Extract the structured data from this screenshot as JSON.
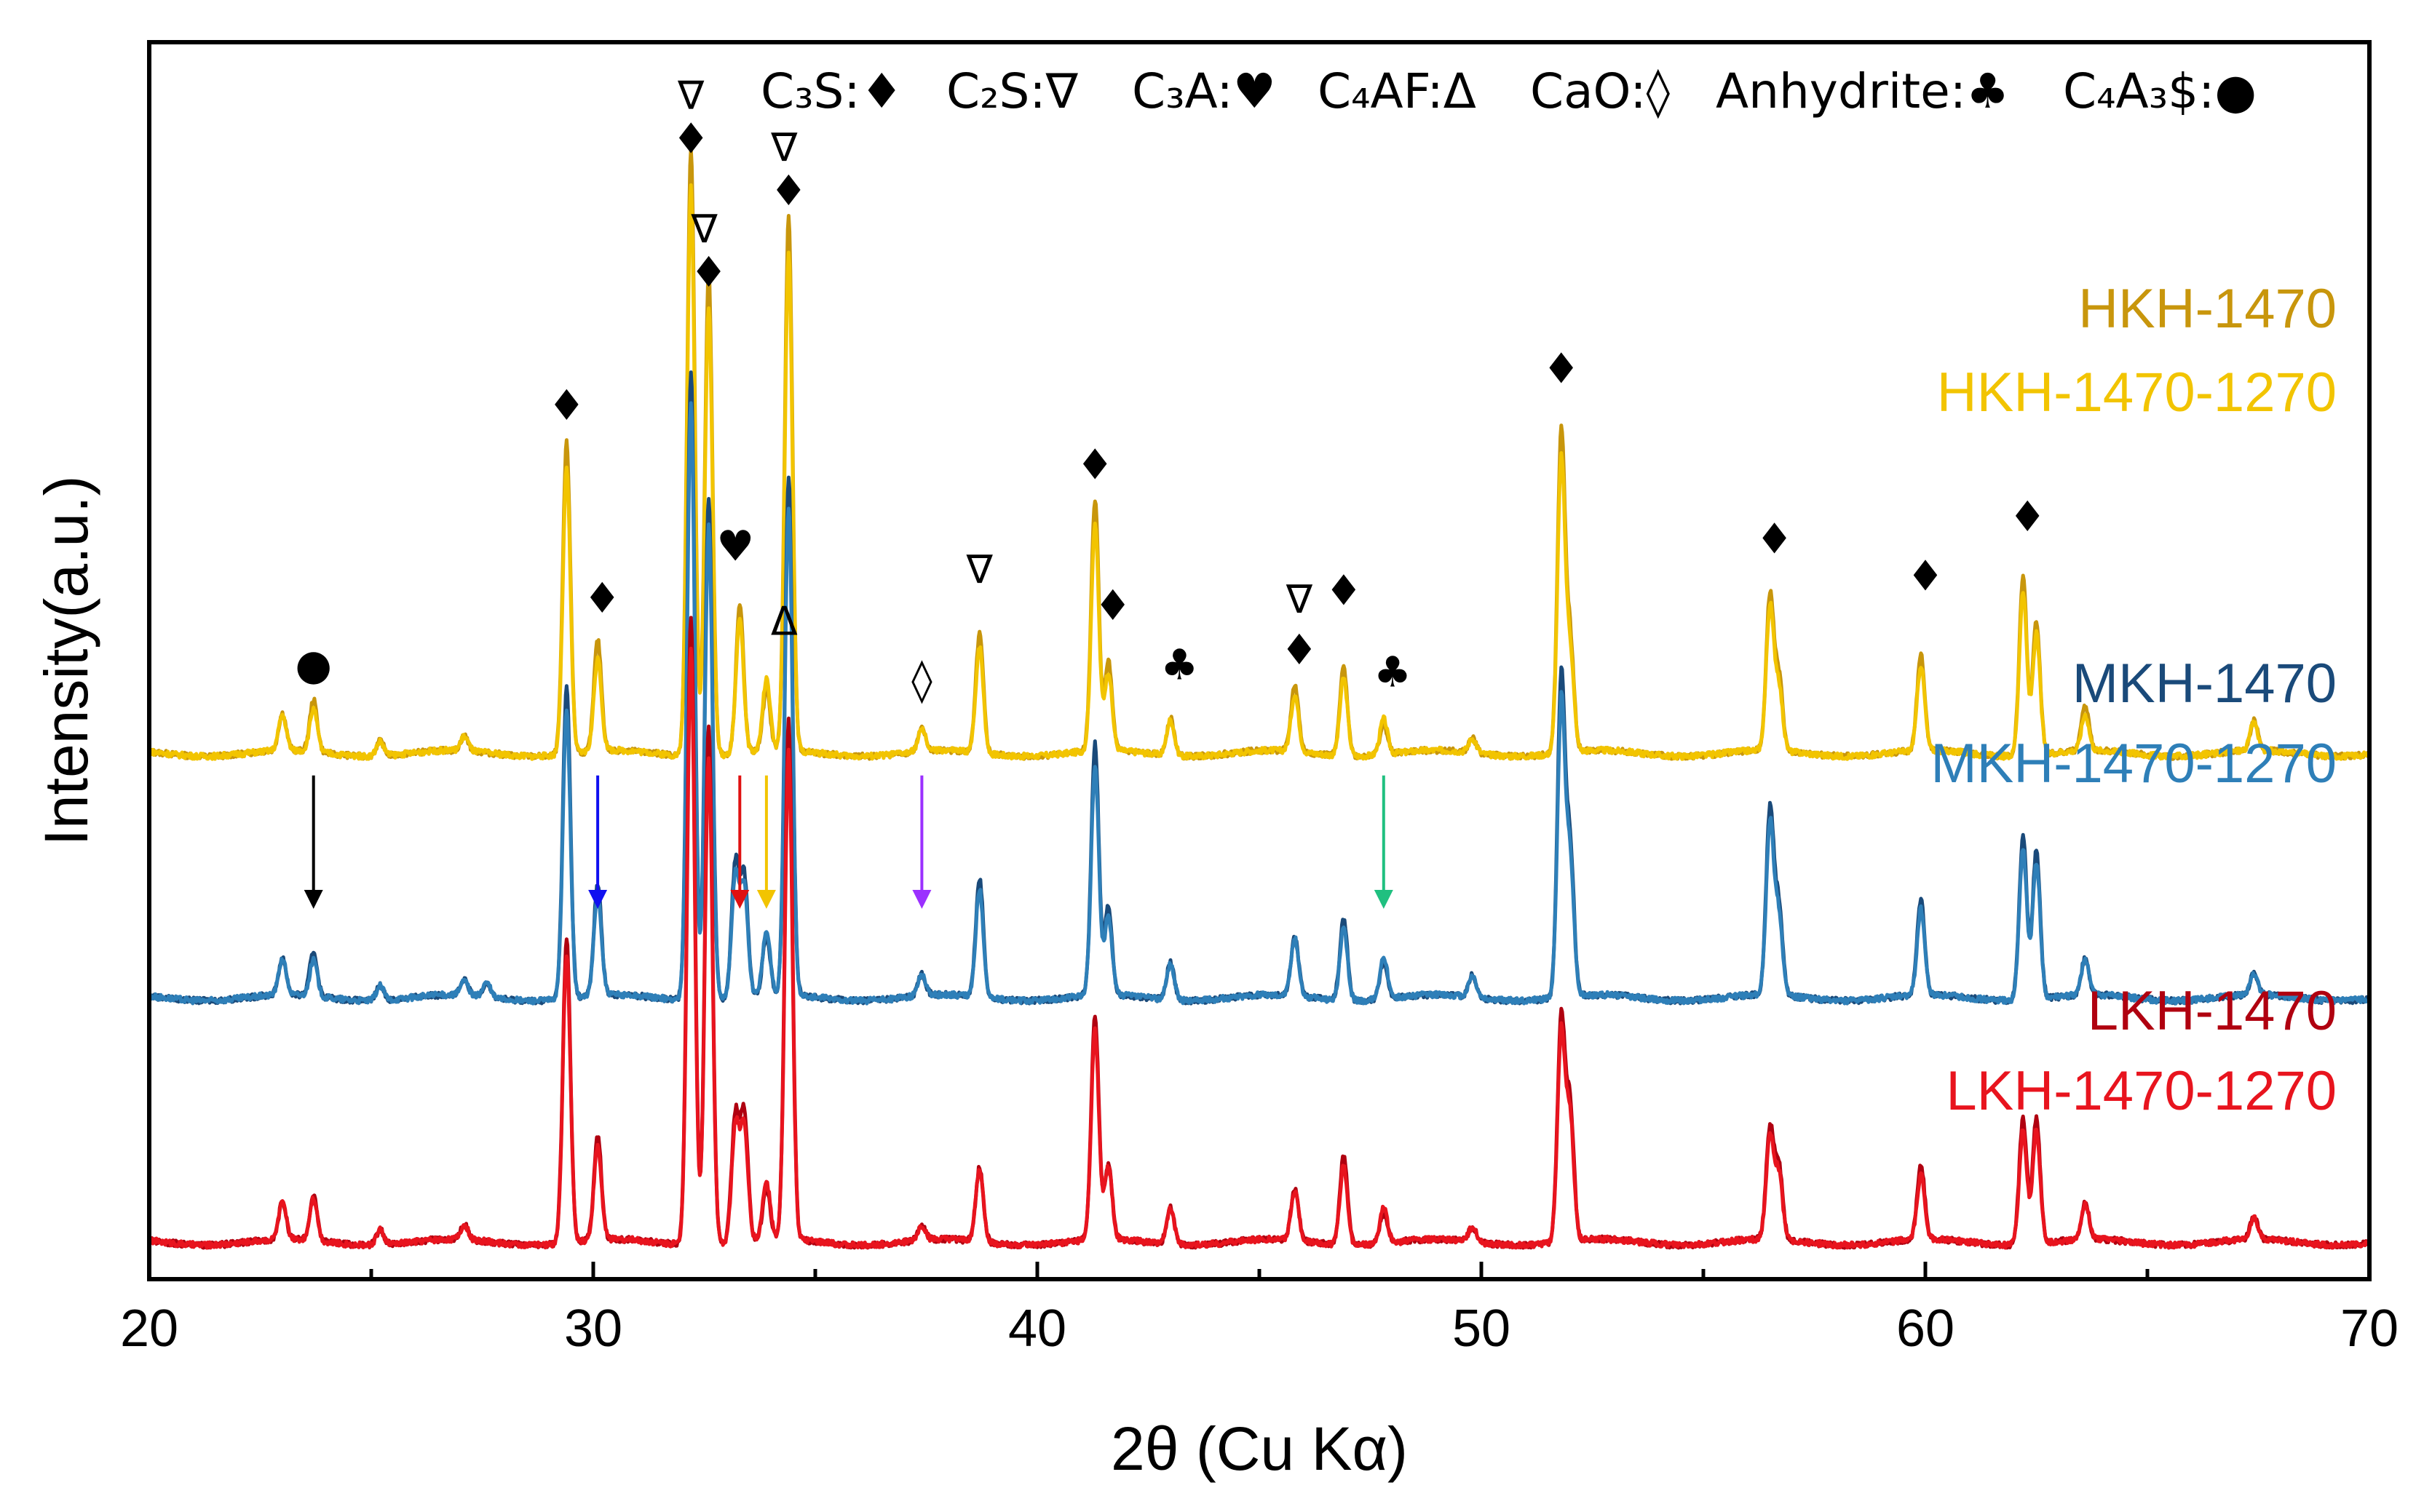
{
  "chart_data": {
    "type": "line",
    "title": "",
    "xlabel": "2θ (Cu Kα)",
    "ylabel": "Intensity(a.u.)",
    "xlim": [
      20,
      70
    ],
    "x_ticks": [
      "20",
      "30",
      "40",
      "50",
      "60",
      "70"
    ],
    "y_ticks": [],
    "grid": false,
    "phase_legend": [
      {
        "label": "C₃S:",
        "symbol": "♦"
      },
      {
        "label": "C₂S:",
        "symbol": "∇"
      },
      {
        "label": "C₃A:",
        "symbol": "♥"
      },
      {
        "label": "C₄AF:",
        "symbol": "Δ"
      },
      {
        "label": "CaO:",
        "symbol": "◊"
      },
      {
        "label": "Anhydrite:",
        "symbol": "♣"
      },
      {
        "label": "C₄A₃$:",
        "symbol": "●"
      }
    ],
    "series": [
      {
        "name": "HKH-1470",
        "color": "#C8960C",
        "offset": 0.66,
        "scale": 1.0,
        "peaks": [
          [
            23.0,
            0.05
          ],
          [
            23.7,
            0.07
          ],
          [
            25.2,
            0.02
          ],
          [
            27.1,
            0.02
          ],
          [
            29.4,
            0.42
          ],
          [
            30.1,
            0.15
          ],
          [
            32.2,
            0.82
          ],
          [
            32.6,
            0.65
          ],
          [
            33.3,
            0.2
          ],
          [
            33.9,
            0.08
          ],
          [
            34.4,
            0.72
          ],
          [
            37.4,
            0.03
          ],
          [
            38.7,
            0.16
          ],
          [
            41.3,
            0.34
          ],
          [
            41.6,
            0.12
          ],
          [
            43.0,
            0.05
          ],
          [
            45.8,
            0.09
          ],
          [
            46.9,
            0.12
          ],
          [
            47.8,
            0.04
          ],
          [
            49.8,
            0.02
          ],
          [
            51.8,
            0.43
          ],
          [
            52.0,
            0.15
          ],
          [
            56.5,
            0.21
          ],
          [
            56.7,
            0.1
          ],
          [
            59.9,
            0.13
          ],
          [
            62.2,
            0.24
          ],
          [
            62.5,
            0.18
          ],
          [
            63.6,
            0.06
          ],
          [
            67.4,
            0.04
          ]
        ]
      },
      {
        "name": "HKH-1470-1270",
        "color": "#F2C400",
        "offset": 0.66,
        "scale": 0.96,
        "peaks": [
          [
            23.0,
            0.05
          ],
          [
            23.7,
            0.06
          ],
          [
            25.2,
            0.02
          ],
          [
            27.1,
            0.02
          ],
          [
            29.4,
            0.4
          ],
          [
            30.1,
            0.13
          ],
          [
            32.2,
            0.8
          ],
          [
            32.6,
            0.63
          ],
          [
            33.3,
            0.19
          ],
          [
            33.9,
            0.1
          ],
          [
            34.4,
            0.7
          ],
          [
            37.4,
            0.03
          ],
          [
            38.7,
            0.15
          ],
          [
            41.3,
            0.32
          ],
          [
            41.6,
            0.11
          ],
          [
            43.0,
            0.05
          ],
          [
            45.8,
            0.08
          ],
          [
            46.9,
            0.11
          ],
          [
            47.8,
            0.05
          ],
          [
            49.8,
            0.02
          ],
          [
            51.8,
            0.41
          ],
          [
            52.0,
            0.14
          ],
          [
            56.5,
            0.2
          ],
          [
            56.7,
            0.09
          ],
          [
            59.9,
            0.12
          ],
          [
            62.2,
            0.23
          ],
          [
            62.5,
            0.17
          ],
          [
            63.6,
            0.05
          ],
          [
            67.4,
            0.04
          ]
        ]
      },
      {
        "name": "MKH-1470",
        "color": "#1A4A7A",
        "offset": 0.33,
        "scale": 1.0,
        "peaks": [
          [
            23.0,
            0.05
          ],
          [
            23.7,
            0.06
          ],
          [
            25.2,
            0.02
          ],
          [
            27.1,
            0.02
          ],
          [
            27.6,
            0.02
          ],
          [
            29.4,
            0.42
          ],
          [
            30.1,
            0.15
          ],
          [
            32.2,
            0.85
          ],
          [
            32.6,
            0.68
          ],
          [
            33.2,
            0.18
          ],
          [
            33.4,
            0.16
          ],
          [
            33.9,
            0.08
          ],
          [
            34.4,
            0.7
          ],
          [
            37.4,
            0.03
          ],
          [
            38.7,
            0.16
          ],
          [
            41.3,
            0.34
          ],
          [
            41.6,
            0.12
          ],
          [
            43.0,
            0.05
          ],
          [
            45.8,
            0.08
          ],
          [
            46.9,
            0.11
          ],
          [
            47.8,
            0.05
          ],
          [
            49.8,
            0.03
          ],
          [
            51.8,
            0.43
          ],
          [
            52.0,
            0.2
          ],
          [
            56.5,
            0.25
          ],
          [
            56.7,
            0.12
          ],
          [
            59.9,
            0.13
          ],
          [
            62.2,
            0.22
          ],
          [
            62.5,
            0.2
          ],
          [
            63.6,
            0.05
          ],
          [
            67.4,
            0.03
          ]
        ]
      },
      {
        "name": "MKH-1470-1270",
        "color": "#2E7FB8",
        "offset": 0.33,
        "scale": 0.97,
        "peaks": [
          [
            23.0,
            0.05
          ],
          [
            23.7,
            0.05
          ],
          [
            25.2,
            0.02
          ],
          [
            27.1,
            0.02
          ],
          [
            27.6,
            0.02
          ],
          [
            29.4,
            0.4
          ],
          [
            30.1,
            0.14
          ],
          [
            32.2,
            0.83
          ],
          [
            32.6,
            0.66
          ],
          [
            33.2,
            0.17
          ],
          [
            33.4,
            0.15
          ],
          [
            33.9,
            0.09
          ],
          [
            34.4,
            0.68
          ],
          [
            37.4,
            0.03
          ],
          [
            38.7,
            0.15
          ],
          [
            41.3,
            0.32
          ],
          [
            41.6,
            0.11
          ],
          [
            43.0,
            0.05
          ],
          [
            45.8,
            0.08
          ],
          [
            46.9,
            0.1
          ],
          [
            47.8,
            0.06
          ],
          [
            49.8,
            0.03
          ],
          [
            51.8,
            0.41
          ],
          [
            52.0,
            0.19
          ],
          [
            56.5,
            0.24
          ],
          [
            56.7,
            0.11
          ],
          [
            59.9,
            0.12
          ],
          [
            62.2,
            0.21
          ],
          [
            62.5,
            0.19
          ],
          [
            63.6,
            0.05
          ],
          [
            67.4,
            0.03
          ]
        ]
      },
      {
        "name": "LKH-1470",
        "color": "#B00010",
        "offset": 0.0,
        "scale": 1.0,
        "peaks": [
          [
            23.0,
            0.05
          ],
          [
            23.7,
            0.06
          ],
          [
            25.2,
            0.02
          ],
          [
            27.1,
            0.02
          ],
          [
            29.4,
            0.41
          ],
          [
            30.1,
            0.14
          ],
          [
            32.2,
            0.85
          ],
          [
            32.6,
            0.7
          ],
          [
            33.2,
            0.17
          ],
          [
            33.4,
            0.17
          ],
          [
            33.9,
            0.07
          ],
          [
            34.4,
            0.7
          ],
          [
            37.4,
            0.02
          ],
          [
            38.7,
            0.1
          ],
          [
            41.3,
            0.3
          ],
          [
            41.6,
            0.1
          ],
          [
            43.0,
            0.05
          ],
          [
            45.8,
            0.07
          ],
          [
            46.9,
            0.12
          ],
          [
            47.8,
            0.04
          ],
          [
            49.8,
            0.02
          ],
          [
            51.8,
            0.3
          ],
          [
            52.0,
            0.18
          ],
          [
            56.5,
            0.15
          ],
          [
            56.7,
            0.1
          ],
          [
            59.9,
            0.1
          ],
          [
            62.2,
            0.17
          ],
          [
            62.5,
            0.17
          ],
          [
            63.6,
            0.05
          ],
          [
            67.4,
            0.03
          ]
        ]
      },
      {
        "name": "LKH-1470-1270",
        "color": "#E8141E",
        "offset": 0.0,
        "scale": 0.97,
        "peaks": [
          [
            23.0,
            0.05
          ],
          [
            23.7,
            0.06
          ],
          [
            25.2,
            0.02
          ],
          [
            27.1,
            0.02
          ],
          [
            29.4,
            0.4
          ],
          [
            30.1,
            0.13
          ],
          [
            32.2,
            0.83
          ],
          [
            32.6,
            0.68
          ],
          [
            33.2,
            0.16
          ],
          [
            33.4,
            0.16
          ],
          [
            33.9,
            0.08
          ],
          [
            34.4,
            0.68
          ],
          [
            37.4,
            0.02
          ],
          [
            38.7,
            0.1
          ],
          [
            41.3,
            0.29
          ],
          [
            41.6,
            0.1
          ],
          [
            43.0,
            0.05
          ],
          [
            45.8,
            0.07
          ],
          [
            46.9,
            0.11
          ],
          [
            47.8,
            0.05
          ],
          [
            49.8,
            0.02
          ],
          [
            51.8,
            0.29
          ],
          [
            52.0,
            0.17
          ],
          [
            56.5,
            0.14
          ],
          [
            56.7,
            0.09
          ],
          [
            59.9,
            0.09
          ],
          [
            62.2,
            0.16
          ],
          [
            62.5,
            0.16
          ],
          [
            63.6,
            0.05
          ],
          [
            67.4,
            0.03
          ]
        ]
      }
    ],
    "annotations": [
      {
        "x": 23.7,
        "y": 0.76,
        "symbol": "●"
      },
      {
        "x": 29.4,
        "y": 1.11,
        "symbol": "♦"
      },
      {
        "x": 30.2,
        "y": 0.85,
        "symbol": "♦"
      },
      {
        "x": 32.2,
        "y": 1.53,
        "symbol": "∇"
      },
      {
        "x": 32.2,
        "y": 1.47,
        "symbol": "♦"
      },
      {
        "x": 32.5,
        "y": 1.35,
        "symbol": "∇"
      },
      {
        "x": 32.6,
        "y": 1.29,
        "symbol": "♦"
      },
      {
        "x": 33.2,
        "y": 0.92,
        "symbol": "♥"
      },
      {
        "x": 34.3,
        "y": 0.82,
        "symbol": "Δ"
      },
      {
        "x": 34.3,
        "y": 1.46,
        "symbol": "∇"
      },
      {
        "x": 34.4,
        "y": 1.4,
        "symbol": "♦"
      },
      {
        "x": 37.4,
        "y": 0.74,
        "symbol": "◊"
      },
      {
        "x": 38.7,
        "y": 0.89,
        "symbol": "∇"
      },
      {
        "x": 41.3,
        "y": 1.03,
        "symbol": "♦"
      },
      {
        "x": 41.7,
        "y": 0.84,
        "symbol": "♦"
      },
      {
        "x": 43.2,
        "y": 0.76,
        "symbol": "♣"
      },
      {
        "x": 45.9,
        "y": 0.85,
        "symbol": "∇"
      },
      {
        "x": 45.9,
        "y": 0.78,
        "symbol": "♦"
      },
      {
        "x": 46.9,
        "y": 0.86,
        "symbol": "♦"
      },
      {
        "x": 48.0,
        "y": 0.75,
        "symbol": "♣"
      },
      {
        "x": 51.8,
        "y": 1.16,
        "symbol": "♦"
      },
      {
        "x": 56.6,
        "y": 0.93,
        "symbol": "♦"
      },
      {
        "x": 60.0,
        "y": 0.88,
        "symbol": "♦"
      },
      {
        "x": 62.3,
        "y": 0.96,
        "symbol": "♦"
      }
    ],
    "arrows": [
      {
        "x": 23.7,
        "color": "#000000"
      },
      {
        "x": 30.1,
        "color": "#1010F0"
      },
      {
        "x": 33.3,
        "color": "#E01010"
      },
      {
        "x": 33.9,
        "color": "#F2C400"
      },
      {
        "x": 37.4,
        "color": "#9B30FF"
      },
      {
        "x": 47.8,
        "color": "#20C080"
      }
    ],
    "legend_placement": "right, beside each trace"
  }
}
